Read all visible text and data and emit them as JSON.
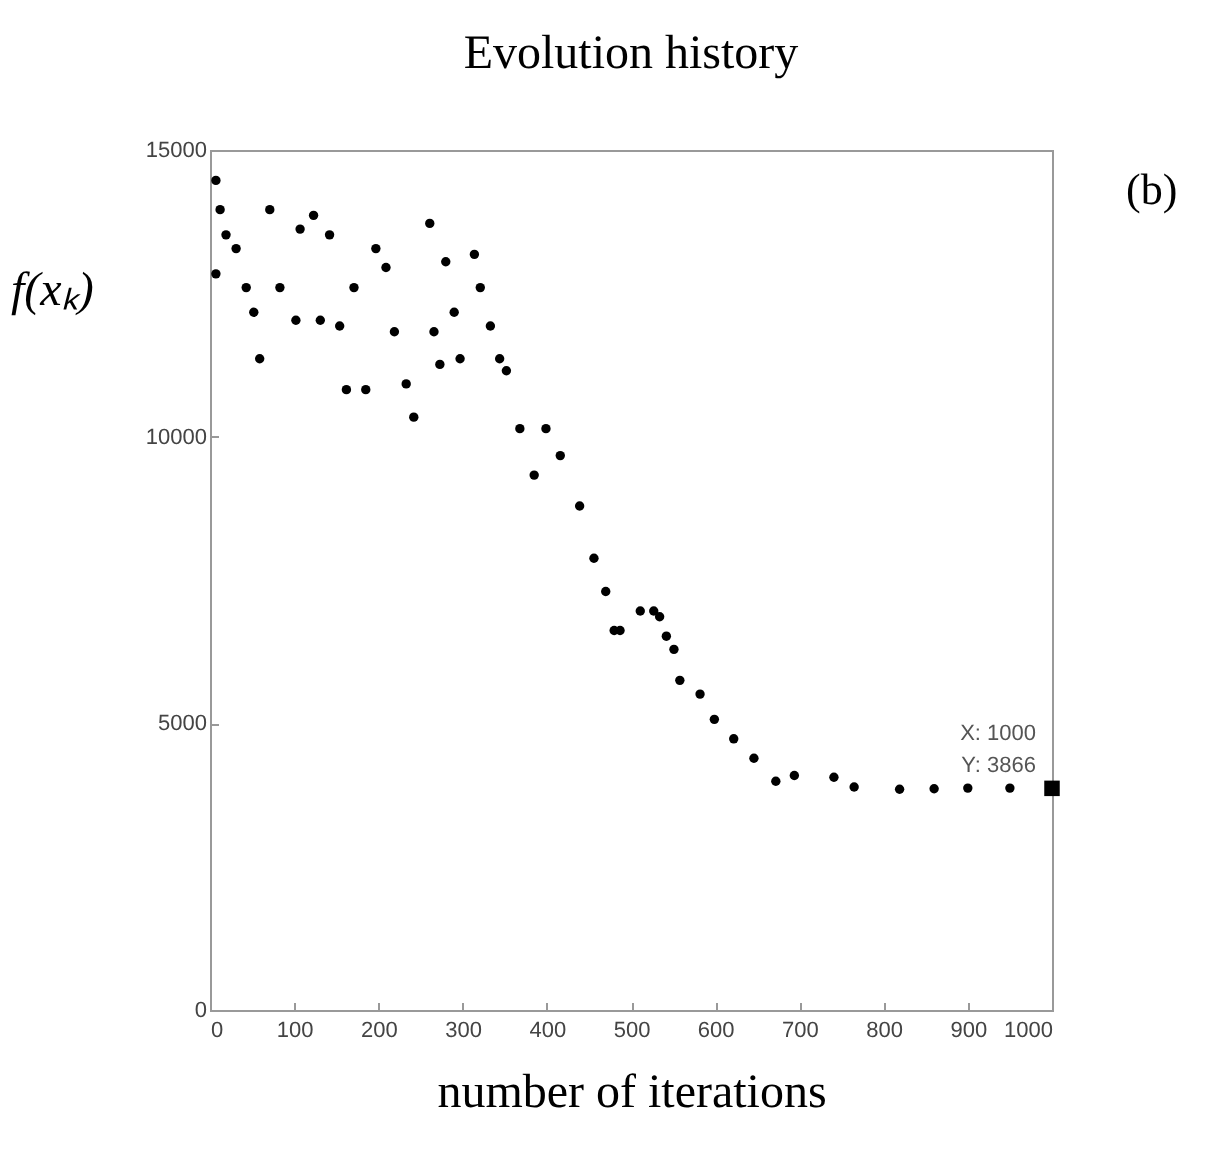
{
  "chart_data": {
    "type": "scatter",
    "title": "Evolution history",
    "xlabel": "number of iterations",
    "ylabel": "f(xₖ)",
    "x": [
      7,
      12,
      19,
      7,
      31,
      43,
      52,
      59,
      71,
      83,
      102,
      107,
      123,
      131,
      142,
      154,
      162,
      171,
      185,
      197,
      209,
      219,
      233,
      242,
      261,
      266,
      273,
      280,
      290,
      297,
      314,
      321,
      333,
      344,
      352,
      368,
      385,
      399,
      416,
      439,
      456,
      470,
      480,
      487,
      511,
      527,
      534,
      542,
      551,
      558,
      582,
      599,
      622,
      646,
      672,
      694,
      741,
      765,
      819,
      860,
      900,
      950,
      1000
    ],
    "series": [
      {
        "color": "#000000",
        "values": [
          14470,
          13960,
          13520,
          12840,
          13280,
          12600,
          12170,
          11360,
          13960,
          12600,
          12030,
          13620,
          13860,
          12030,
          13520,
          11930,
          10820,
          12600,
          10820,
          13280,
          12950,
          11830,
          10920,
          10340,
          13720,
          11830,
          11260,
          13050,
          12170,
          11360,
          13180,
          12600,
          11930,
          11360,
          11150,
          10140,
          9330,
          10140,
          9670,
          8790,
          7880,
          7300,
          6620,
          6620,
          6960,
          6960,
          6860,
          6520,
          6290,
          5750,
          5510,
          5070,
          4730,
          4390,
          3990,
          4090,
          4060,
          3890,
          3850,
          3860,
          3870,
          3870,
          3870
        ]
      }
    ],
    "xlim": [
      0,
      1000
    ],
    "xticks": [
      0,
      100,
      200,
      300,
      400,
      500,
      600,
      700,
      800,
      900,
      1000
    ],
    "ylim": [
      0,
      15000
    ],
    "yticks": [
      0,
      5000,
      10000,
      15000
    ],
    "marker": "circle",
    "grid": false,
    "annotations": [
      "(b)",
      {
        "text": "X: 1000\nY: 3866",
        "x": 1000,
        "y": 3866
      }
    ]
  }
}
